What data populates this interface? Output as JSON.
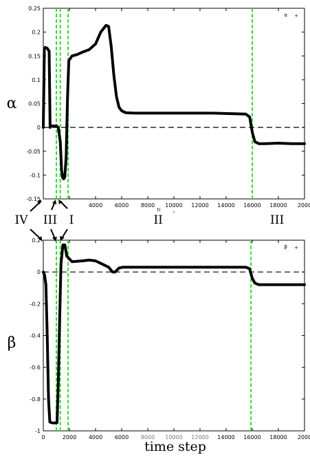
{
  "chart_data": [
    {
      "type": "line",
      "ylabel": "α",
      "legend": {
        "label": "α",
        "marker": "+",
        "placement": "top-right"
      },
      "ylim": [
        -0.15,
        0.25
      ],
      "xlim": [
        0,
        20000
      ],
      "yticks": [
        "0.25",
        "0.2",
        "0.15",
        "0.1",
        "0.05",
        "0",
        "-0.05",
        "-0.1",
        "-0.15"
      ],
      "xticks": [
        "",
        "",
        "4000",
        "6000",
        "8000",
        "10000",
        "12000",
        "14000",
        "16000",
        "18000",
        "2000"
      ],
      "zero_line": true,
      "region_markers_x": [
        1000,
        1300,
        1900,
        16000
      ],
      "series": [
        {
          "x": [
            0,
            80,
            150,
            300,
            450,
            520,
            600,
            800,
            1000,
            1150,
            1300,
            1400,
            1480,
            1560,
            1650,
            1750,
            1850,
            1950,
            2200,
            2600,
            3000,
            3500,
            4000,
            4400,
            4800,
            5000,
            5200,
            5400,
            5600,
            5800,
            6000,
            6300,
            7000,
            10000,
            13000,
            15500,
            15800,
            16000,
            16200,
            16500,
            17000,
            18000,
            19000,
            20000
          ],
          "y": [
            0.0,
            0.165,
            0.168,
            0.166,
            0.16,
            0.0,
            0.003,
            0.003,
            0.003,
            0.0,
            -0.03,
            -0.09,
            -0.105,
            -0.108,
            -0.104,
            -0.06,
            0.06,
            0.14,
            0.15,
            0.153,
            0.158,
            0.163,
            0.175,
            0.2,
            0.214,
            0.212,
            0.17,
            0.11,
            0.065,
            0.042,
            0.035,
            0.031,
            0.03,
            0.03,
            0.03,
            0.028,
            0.022,
            -0.01,
            -0.03,
            -0.034,
            -0.034,
            -0.033,
            -0.034,
            -0.034
          ]
        }
      ]
    },
    {
      "type": "line",
      "ylabel": "β",
      "legend": {
        "label": "β",
        "marker": "+",
        "placement": "top-right"
      },
      "ylim": [
        -1,
        0.2
      ],
      "xlim": [
        0,
        20000
      ],
      "yticks": [
        "0.2",
        "0",
        "-0.2",
        "-0.4",
        "-0.6",
        "-0.8",
        "-1"
      ],
      "xticks": [
        "0",
        "2000",
        "4000",
        "6000",
        "8000",
        "10000",
        "12000",
        "14000",
        "16000",
        "18000",
        "2000"
      ],
      "xticks_obscured": [
        false,
        false,
        false,
        false,
        true,
        true,
        true,
        false,
        false,
        false,
        false
      ],
      "xlabel": "time step",
      "zero_line": true,
      "region_markers_x": [
        1000,
        1300,
        1900,
        15900
      ],
      "series": [
        {
          "x": [
            0,
            100,
            200,
            300,
            400,
            500,
            700,
            900,
            1050,
            1150,
            1250,
            1350,
            1500,
            1650,
            1800,
            2200,
            3000,
            3500,
            4000,
            4500,
            5000,
            5300,
            5500,
            5800,
            6100,
            7000,
            10000,
            13000,
            15500,
            15800,
            16000,
            16200,
            16500,
            17000,
            18000,
            19000,
            20000
          ],
          "y": [
            0.0,
            -0.02,
            -0.08,
            -0.4,
            -0.8,
            -0.945,
            -0.95,
            -0.95,
            -0.948,
            -0.7,
            -0.3,
            0.05,
            0.17,
            0.17,
            0.1,
            0.065,
            0.07,
            0.075,
            0.07,
            0.05,
            0.03,
            0.0,
            0.0,
            0.025,
            0.03,
            0.03,
            0.03,
            0.03,
            0.03,
            0.02,
            -0.04,
            -0.07,
            -0.08,
            -0.08,
            -0.08,
            -0.08,
            -0.08
          ]
        }
      ]
    }
  ],
  "region_labels_middle": [
    {
      "text": "IV",
      "x": 500
    },
    {
      "text": "III",
      "x": 1150
    },
    {
      "text": "I",
      "x": 1750
    },
    {
      "text": "II",
      "x": 8800
    },
    {
      "text": "III",
      "x": 17900
    }
  ],
  "colors": {
    "curve": "#000000",
    "markers": "#33dd33",
    "axis": "#000000"
  }
}
